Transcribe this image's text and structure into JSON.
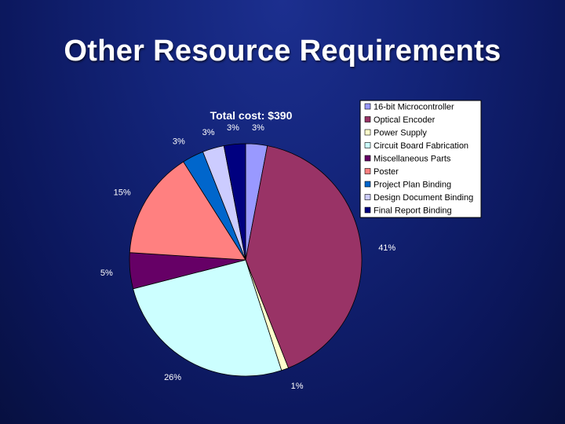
{
  "slide": {
    "title": "Other Resource Requirements"
  },
  "chart_data": {
    "type": "pie",
    "title": "Total cost: $390",
    "legend_position": "top-right",
    "categories": [
      "16-bit Microcontroller",
      "Optical Encoder",
      "Power Supply",
      "Circuit Board Fabrication",
      "Miscellaneous Parts",
      "Poster",
      "Project Plan Binding",
      "Design Document Binding",
      "Final Report Binding"
    ],
    "values": [
      3,
      41,
      1,
      26,
      5,
      15,
      3,
      3,
      3
    ],
    "labels": [
      "3%",
      "41%",
      "1%",
      "26%",
      "5%",
      "15%",
      "3%",
      "3%",
      "3%"
    ],
    "colors": [
      "#9999ff",
      "#993366",
      "#ffffcc",
      "#ccffff",
      "#660066",
      "#ff8080",
      "#0066cc",
      "#ccccff",
      "#000080"
    ]
  }
}
